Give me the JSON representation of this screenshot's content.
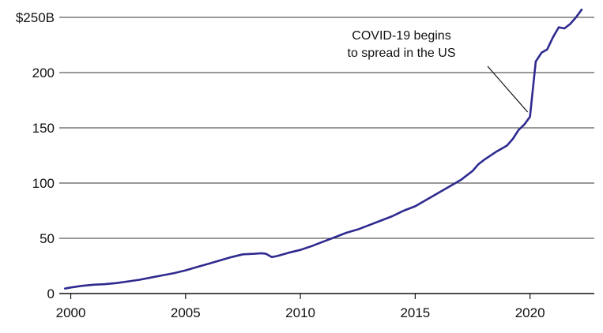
{
  "chart_data": {
    "type": "line",
    "x_unit": "year",
    "xlim": [
      1999.5,
      2022.8
    ],
    "ylim": [
      0,
      250
    ],
    "x_ticks": [
      {
        "value": 2000,
        "label": "2000"
      },
      {
        "value": 2005,
        "label": "2005"
      },
      {
        "value": 2010,
        "label": "2010"
      },
      {
        "value": 2015,
        "label": "2015"
      },
      {
        "value": 2020,
        "label": "2020"
      }
    ],
    "y_ticks": [
      {
        "value": 0,
        "label": "0"
      },
      {
        "value": 50,
        "label": "50"
      },
      {
        "value": 100,
        "label": "100"
      },
      {
        "value": 150,
        "label": "150"
      },
      {
        "value": 200,
        "label": "200"
      },
      {
        "value": 250,
        "label": "$250B"
      }
    ],
    "grid": "horizontal",
    "series": [
      {
        "color": "#2e2a8f",
        "x": [
          1999.75,
          2000.0,
          2000.5,
          2001.0,
          2001.5,
          2002.0,
          2002.5,
          2003.0,
          2003.5,
          2004.0,
          2004.5,
          2005.0,
          2005.5,
          2006.0,
          2006.5,
          2007.0,
          2007.5,
          2008.0,
          2008.3,
          2008.5,
          2008.75,
          2009.0,
          2009.5,
          2010.0,
          2010.5,
          2011.0,
          2011.5,
          2012.0,
          2012.5,
          2013.0,
          2013.5,
          2014.0,
          2014.5,
          2015.0,
          2015.5,
          2016.0,
          2016.5,
          2017.0,
          2017.25,
          2017.5,
          2017.75,
          2018.0,
          2018.5,
          2019.0,
          2019.25,
          2019.5,
          2019.75,
          2020.0,
          2020.25,
          2020.5,
          2020.75,
          2021.0,
          2021.25,
          2021.5,
          2021.75,
          2022.0,
          2022.25
        ],
        "values": [
          4.5,
          5.5,
          7,
          8,
          8.5,
          9.5,
          11,
          12.5,
          14.5,
          16.5,
          18.5,
          21,
          24,
          27,
          30,
          33,
          35.5,
          36,
          36.5,
          36,
          33,
          34,
          37,
          39.5,
          43,
          47,
          51,
          55,
          58,
          62,
          66,
          70,
          75,
          79,
          85,
          91,
          97,
          103,
          107,
          111,
          117,
          121,
          128,
          134,
          140,
          148,
          153,
          160,
          210,
          218,
          221,
          232,
          241,
          240,
          244,
          250,
          257
        ]
      }
    ],
    "annotations": [
      {
        "text_lines": [
          "COVID-19 begins",
          "to spread in the US"
        ],
        "x": 2020.0,
        "y": 160
      }
    ]
  }
}
